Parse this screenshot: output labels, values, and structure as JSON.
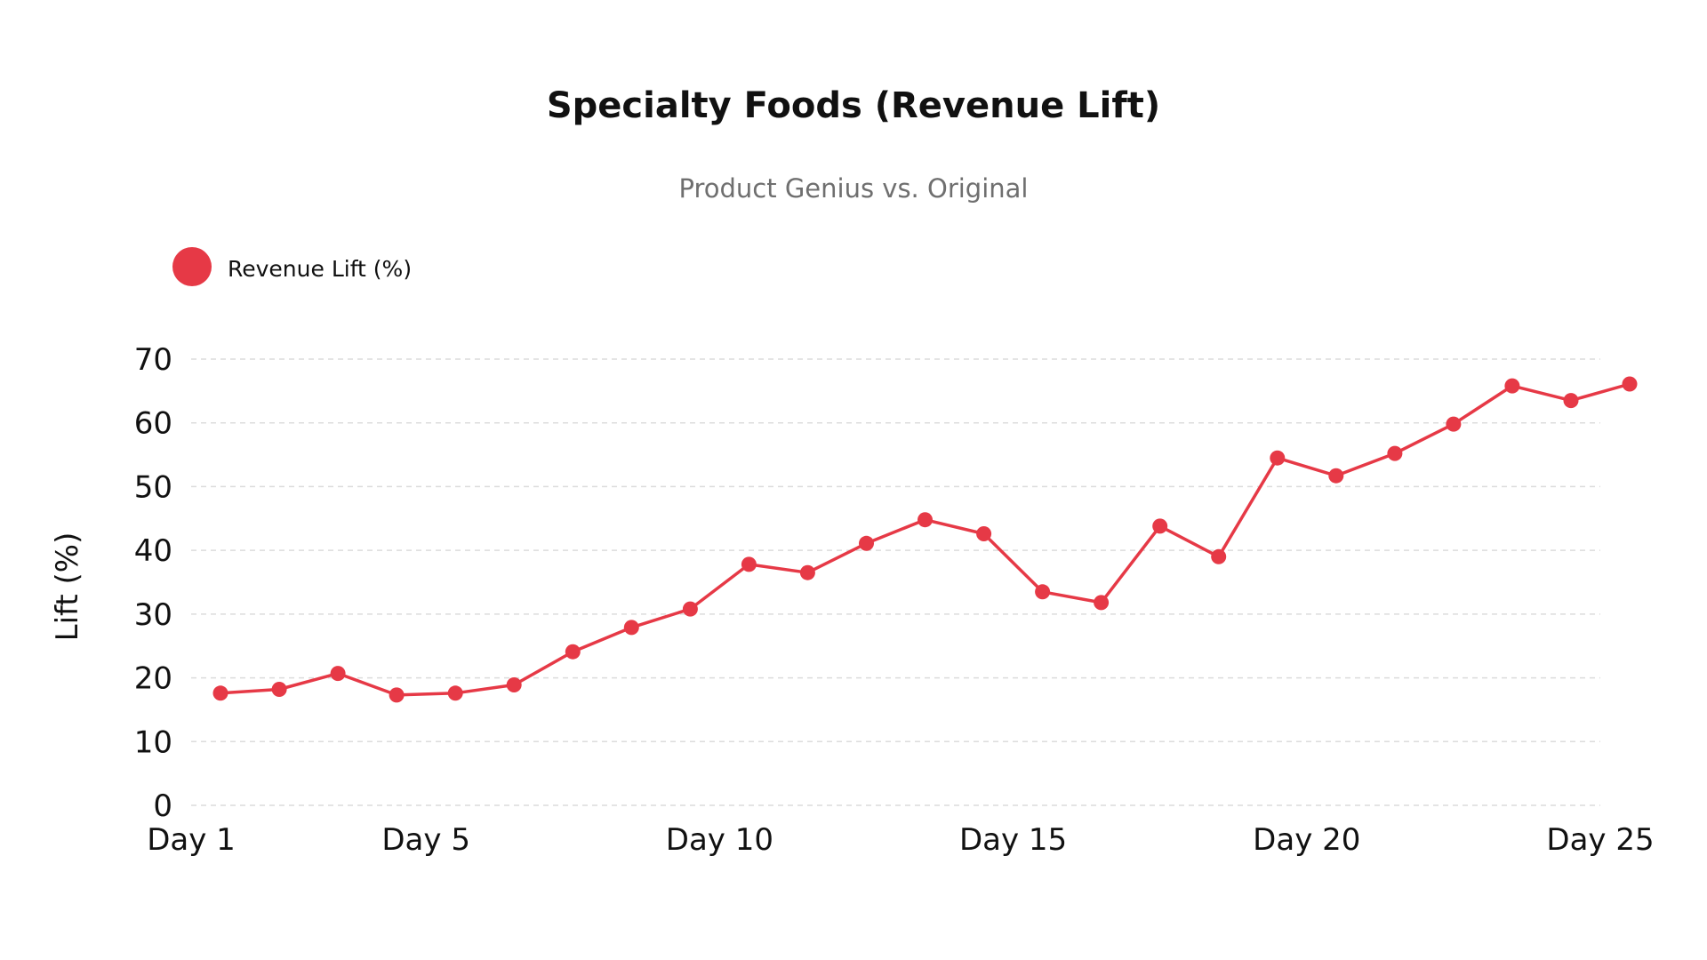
{
  "colors": {
    "series": "#e63946",
    "grid": "#dcdcdc",
    "text": "#111111",
    "subtitle": "#6f6f6f"
  },
  "chart_data": {
    "type": "line",
    "title": "Specialty Foods (Revenue Lift)",
    "subtitle": "Product Genius vs. Original",
    "xlabel": "",
    "ylabel": "Lift (%)",
    "ylim": [
      0,
      70
    ],
    "yticks": [
      0,
      10,
      20,
      30,
      40,
      50,
      60,
      70
    ],
    "xlim": [
      1,
      25
    ],
    "xticks": [
      {
        "x": 1,
        "label": "Day 1"
      },
      {
        "x": 5,
        "label": "Day 5"
      },
      {
        "x": 10,
        "label": "Day 10"
      },
      {
        "x": 15,
        "label": "Day 15"
      },
      {
        "x": 20,
        "label": "Day 20"
      },
      {
        "x": 25,
        "label": "Day 25"
      }
    ],
    "grid": true,
    "legend_position": "top-left",
    "series": [
      {
        "name": "Revenue Lift (%)",
        "color": "#e63946",
        "x": [
          1.5,
          2.5,
          3.5,
          4.5,
          5.5,
          6.5,
          7.5,
          8.5,
          9.5,
          10.5,
          11.5,
          12.5,
          13.5,
          14.5,
          15.5,
          16.5,
          17.5,
          18.5,
          19.5,
          20.5,
          21.5,
          22.5,
          23.5,
          24.5,
          25.5
        ],
        "values": [
          17.6,
          18.2,
          20.7,
          17.3,
          17.6,
          18.9,
          24.1,
          27.9,
          30.8,
          37.8,
          36.5,
          41.1,
          44.8,
          42.6,
          33.5,
          31.8,
          43.8,
          39.0,
          54.5,
          51.7,
          55.2,
          59.8,
          65.8,
          63.5,
          66.1
        ]
      }
    ]
  }
}
